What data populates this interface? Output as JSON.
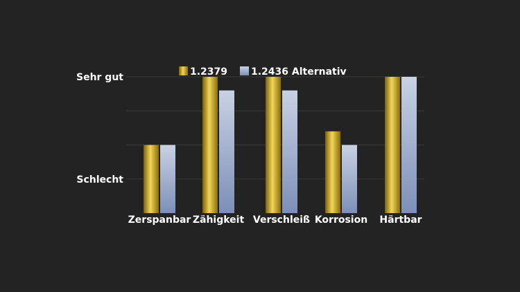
{
  "chart_data": {
    "type": "bar",
    "categories": [
      "Zerspanbar",
      "Zähigkeit",
      "Verschleiß",
      "Korrosion",
      "Härtbar"
    ],
    "series": [
      {
        "name": "1.2379",
        "values": [
          2,
          4,
          4,
          2.4,
          4
        ]
      },
      {
        "name": "1.2436 Alternativ",
        "values": [
          2,
          3.6,
          3.6,
          2,
          4
        ]
      }
    ],
    "ylim": [
      0,
      4
    ],
    "y_ticks": [
      {
        "value": 4,
        "label": "Sehr gut"
      },
      {
        "value": 1,
        "label": "Schlecht"
      }
    ],
    "grid": true,
    "legend_position": "top",
    "colors": {
      "background": "#232323",
      "gridline": "#3a3a3a",
      "series1_dark": "#7a6206",
      "series1_light": "#f2d65a",
      "series2_top": "#c4cee0",
      "series2_bottom": "#7d8fb8"
    }
  }
}
